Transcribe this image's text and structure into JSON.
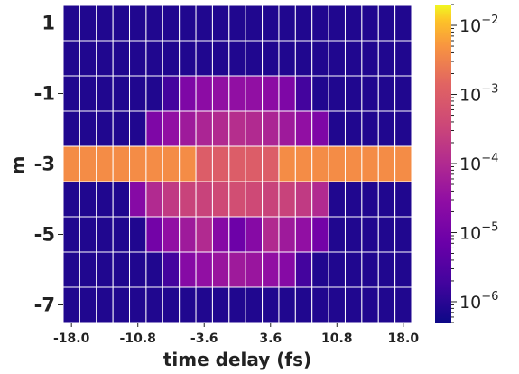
{
  "chart_data": {
    "type": "heatmap",
    "xlabel": "time delay (fs)",
    "ylabel": "m",
    "x_tick_labels": [
      "-18.0",
      "-10.8",
      "-3.6",
      "3.6",
      "10.8",
      "18.0"
    ],
    "x_tick_values": [
      -18.0,
      -10.8,
      -3.6,
      3.6,
      10.8,
      18.0
    ],
    "x_range": [
      -18.0,
      18.0
    ],
    "x_cells": 21,
    "y_tick_labels": [
      "1",
      "-1",
      "-3",
      "-5",
      "-7"
    ],
    "y_tick_values": [
      1,
      -1,
      -3,
      -5,
      -7
    ],
    "rows_m": [
      1,
      0,
      -1,
      -2,
      -3,
      -4,
      -5,
      -6,
      -7
    ],
    "colormap": "plasma",
    "color_scale": "log",
    "color_range": [
      5e-07,
      0.02
    ],
    "colorbar_ticks": [
      {
        "base": "10",
        "exp": "−2",
        "value": 0.01
      },
      {
        "base": "10",
        "exp": "−3",
        "value": 0.001
      },
      {
        "base": "10",
        "exp": "−4",
        "value": 0.0001
      },
      {
        "base": "10",
        "exp": "−5",
        "value": 1e-05
      },
      {
        "base": "10",
        "exp": "−6",
        "value": 1e-06
      }
    ],
    "values": [
      [
        8e-07,
        8e-07,
        8e-07,
        8e-07,
        8e-07,
        8e-07,
        8e-07,
        8e-07,
        8e-07,
        8e-07,
        8e-07,
        8e-07,
        8e-07,
        8e-07,
        8e-07,
        8e-07,
        8e-07,
        8e-07,
        8e-07,
        8e-07,
        8e-07
      ],
      [
        8e-07,
        8e-07,
        8e-07,
        8e-07,
        8e-07,
        8e-07,
        8e-07,
        8e-07,
        8e-07,
        8e-07,
        8e-07,
        8e-07,
        8e-07,
        8e-07,
        8e-07,
        8e-07,
        8e-07,
        8e-07,
        8e-07,
        8e-07,
        8e-07
      ],
      [
        8e-07,
        8e-07,
        8e-07,
        8e-07,
        8e-07,
        8e-07,
        2e-06,
        1.5e-05,
        2.5e-05,
        3e-05,
        3e-05,
        3e-05,
        2.5e-05,
        1.5e-05,
        2e-06,
        8e-07,
        8e-07,
        8e-07,
        8e-07,
        8e-07,
        8e-07
      ],
      [
        8e-07,
        8e-07,
        8e-07,
        8e-07,
        8e-07,
        1.5e-05,
        3e-05,
        5e-05,
        8e-05,
        0.0001,
        0.00012,
        0.0001,
        8e-05,
        5e-05,
        3e-05,
        1.5e-05,
        8e-07,
        8e-07,
        8e-07,
        8e-07,
        8e-07
      ],
      [
        0.004,
        0.004,
        0.004,
        0.004,
        0.004,
        0.004,
        0.004,
        0.004,
        0.001,
        0.001,
        0.001,
        0.001,
        0.001,
        0.004,
        0.004,
        0.004,
        0.004,
        0.004,
        0.004,
        0.004,
        0.004
      ],
      [
        8e-07,
        8e-07,
        8e-07,
        8e-07,
        2e-05,
        0.0001,
        0.0002,
        0.0003,
        0.0003,
        0.0004,
        0.0005,
        0.0004,
        0.0003,
        0.0003,
        0.0002,
        0.0001,
        8e-07,
        8e-07,
        8e-07,
        8e-07,
        8e-07
      ],
      [
        8e-07,
        8e-07,
        8e-07,
        8e-07,
        8e-07,
        1e-05,
        3e-05,
        5e-05,
        0.0001,
        2e-05,
        8e-06,
        2e-05,
        0.0001,
        5e-05,
        3e-05,
        1e-05,
        8e-07,
        8e-07,
        8e-07,
        8e-07,
        8e-07
      ],
      [
        8e-07,
        8e-07,
        8e-07,
        8e-07,
        8e-07,
        8e-07,
        2e-06,
        2e-05,
        3e-05,
        4e-05,
        5e-05,
        4e-05,
        3e-05,
        2e-05,
        2e-06,
        8e-07,
        8e-07,
        8e-07,
        8e-07,
        8e-07,
        8e-07
      ],
      [
        8e-07,
        8e-07,
        8e-07,
        8e-07,
        8e-07,
        8e-07,
        8e-07,
        8e-07,
        8e-07,
        8e-07,
        8e-07,
        8e-07,
        8e-07,
        8e-07,
        8e-07,
        8e-07,
        8e-07,
        8e-07,
        8e-07,
        8e-07,
        8e-07
      ]
    ]
  }
}
